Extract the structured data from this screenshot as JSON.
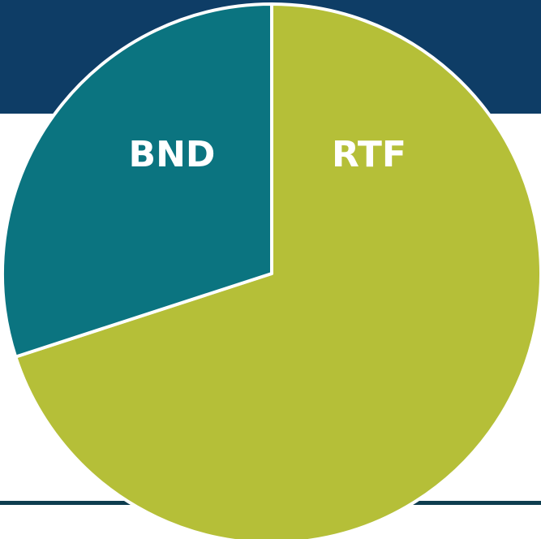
{
  "chart_data": {
    "type": "pie",
    "categories": [
      "RTF",
      "BND"
    ],
    "values": [
      70,
      30
    ],
    "colors": [
      "#b5bf38",
      "#0b7480"
    ]
  }
}
